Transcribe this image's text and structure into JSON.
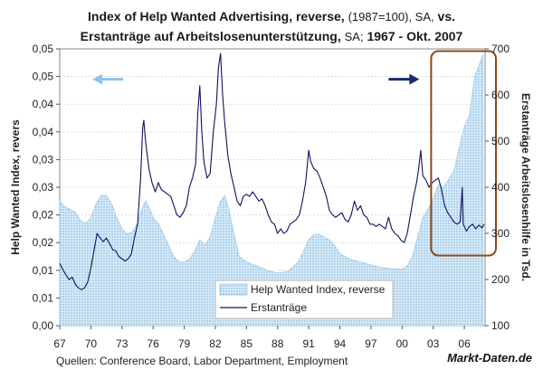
{
  "chart_data": {
    "type": "area+line",
    "title_line1": {
      "bold_a": "Index of Help Wanted Advertising, reverse,",
      "light": "(1987=100), SA,",
      "bold_b": "vs."
    },
    "title_line2": {
      "bold_a": "Erstanträge auf Arbeitslosenunterstützung,",
      "light": "SA;",
      "bold_b": "1967 -  Okt. 2007"
    },
    "ylabel_left": "Help Wanted Index, revers",
    "ylabel_right": "Erstanträge Arbeitslosenhilfe in Tsd.",
    "source": "Quellen: Conference Board, Labor Department, Employment",
    "brand": "Markt-Daten.de",
    "x_tick_labels": [
      "67",
      "70",
      "73",
      "76",
      "79",
      "82",
      "85",
      "88",
      "91",
      "94",
      "97",
      "00",
      "03",
      "06"
    ],
    "x_tick_years": [
      1967,
      1970,
      1973,
      1976,
      1979,
      1982,
      1985,
      1988,
      1991,
      1994,
      1997,
      2000,
      2003,
      2006
    ],
    "xlim": [
      1967.0,
      2008.0
    ],
    "left_ylim": [
      0,
      0.05
    ],
    "left_ticks": [
      "0,00",
      "0,01",
      "0,01",
      "0,02",
      "0,02",
      "0,03",
      "0,03",
      "0,04",
      "0,04",
      "0,05",
      "0,05"
    ],
    "left_tick_values": [
      0,
      0.005,
      0.01,
      0.015,
      0.02,
      0.025,
      0.03,
      0.035,
      0.04,
      0.045,
      0.05
    ],
    "right_ylim": [
      100,
      700
    ],
    "right_ticks": [
      "100",
      "200",
      "300",
      "400",
      "500",
      "600",
      "700"
    ],
    "right_tick_values": [
      100,
      200,
      300,
      400,
      500,
      600,
      700
    ],
    "series": [
      {
        "name": "Help Wanted Index, reverse",
        "axis": "left",
        "style": "area",
        "color": "#9fcbe8",
        "points": [
          [
            1967,
            0.0225
          ],
          [
            1967.5,
            0.0215
          ],
          [
            1968,
            0.021
          ],
          [
            1968.5,
            0.0205
          ],
          [
            1969,
            0.019
          ],
          [
            1969.5,
            0.0185
          ],
          [
            1970,
            0.0195
          ],
          [
            1970.5,
            0.022
          ],
          [
            1971,
            0.0235
          ],
          [
            1971.5,
            0.0235
          ],
          [
            1972,
            0.022
          ],
          [
            1972.5,
            0.0195
          ],
          [
            1973,
            0.0175
          ],
          [
            1973.5,
            0.0165
          ],
          [
            1974,
            0.017
          ],
          [
            1974.5,
            0.0185
          ],
          [
            1975,
            0.0215
          ],
          [
            1975.3,
            0.0225
          ],
          [
            1975.7,
            0.021
          ],
          [
            1976,
            0.0195
          ],
          [
            1976.5,
            0.0185
          ],
          [
            1977,
            0.0165
          ],
          [
            1977.5,
            0.0145
          ],
          [
            1978,
            0.0125
          ],
          [
            1978.5,
            0.0115
          ],
          [
            1979,
            0.0115
          ],
          [
            1979.5,
            0.012
          ],
          [
            1980,
            0.0135
          ],
          [
            1980.5,
            0.0155
          ],
          [
            1981,
            0.0145
          ],
          [
            1981.5,
            0.016
          ],
          [
            1982,
            0.0195
          ],
          [
            1982.5,
            0.0225
          ],
          [
            1982.9,
            0.0235
          ],
          [
            1983.3,
            0.021
          ],
          [
            1983.8,
            0.0165
          ],
          [
            1984.3,
            0.0125
          ],
          [
            1985,
            0.0115
          ],
          [
            1986,
            0.0108
          ],
          [
            1987,
            0.01
          ],
          [
            1988,
            0.0095
          ],
          [
            1989,
            0.0098
          ],
          [
            1990,
            0.0115
          ],
          [
            1990.5,
            0.0135
          ],
          [
            1991,
            0.0155
          ],
          [
            1991.5,
            0.0165
          ],
          [
            1992,
            0.0165
          ],
          [
            1992.5,
            0.016
          ],
          [
            1993,
            0.0155
          ],
          [
            1993.5,
            0.0145
          ],
          [
            1994,
            0.013
          ],
          [
            1995,
            0.012
          ],
          [
            1996,
            0.0115
          ],
          [
            1997,
            0.011
          ],
          [
            1998,
            0.0105
          ],
          [
            1999,
            0.0103
          ],
          [
            2000,
            0.0102
          ],
          [
            2000.5,
            0.0108
          ],
          [
            2001,
            0.0125
          ],
          [
            2001.5,
            0.016
          ],
          [
            2002,
            0.0195
          ],
          [
            2002.5,
            0.021
          ],
          [
            2003,
            0.023
          ],
          [
            2003.5,
            0.0255
          ],
          [
            2004,
            0.025
          ],
          [
            2004.5,
            0.0265
          ],
          [
            2005,
            0.028
          ],
          [
            2005.5,
            0.032
          ],
          [
            2006,
            0.036
          ],
          [
            2006.5,
            0.038
          ],
          [
            2007,
            0.045
          ],
          [
            2007.5,
            0.0475
          ],
          [
            2007.8,
            0.049
          ]
        ]
      },
      {
        "name": "Erstanträge",
        "axis": "right",
        "style": "line",
        "color": "#10105e",
        "points": [
          [
            1967,
            235
          ],
          [
            1967.3,
            222
          ],
          [
            1967.6,
            210
          ],
          [
            1967.9,
            200
          ],
          [
            1968.2,
            205
          ],
          [
            1968.5,
            190
          ],
          [
            1968.8,
            182
          ],
          [
            1969.1,
            178
          ],
          [
            1969.4,
            182
          ],
          [
            1969.7,
            195
          ],
          [
            1970,
            225
          ],
          [
            1970.3,
            262
          ],
          [
            1970.6,
            300
          ],
          [
            1970.9,
            290
          ],
          [
            1971.2,
            282
          ],
          [
            1971.5,
            290
          ],
          [
            1971.8,
            278
          ],
          [
            1972.1,
            265
          ],
          [
            1972.4,
            262
          ],
          [
            1972.7,
            250
          ],
          [
            1973,
            245
          ],
          [
            1973.3,
            240
          ],
          [
            1973.6,
            245
          ],
          [
            1973.9,
            255
          ],
          [
            1974.2,
            290
          ],
          [
            1974.5,
            320
          ],
          [
            1974.8,
            420
          ],
          [
            1975.0,
            530
          ],
          [
            1975.1,
            545
          ],
          [
            1975.3,
            495
          ],
          [
            1975.6,
            440
          ],
          [
            1975.9,
            410
          ],
          [
            1976.2,
            390
          ],
          [
            1976.5,
            410
          ],
          [
            1976.8,
            395
          ],
          [
            1977.1,
            390
          ],
          [
            1977.4,
            385
          ],
          [
            1977.7,
            380
          ],
          [
            1978,
            360
          ],
          [
            1978.3,
            340
          ],
          [
            1978.6,
            335
          ],
          [
            1978.9,
            345
          ],
          [
            1979.2,
            360
          ],
          [
            1979.5,
            400
          ],
          [
            1979.8,
            420
          ],
          [
            1980.1,
            450
          ],
          [
            1980.3,
            560
          ],
          [
            1980.5,
            620
          ],
          [
            1980.7,
            520
          ],
          [
            1980.9,
            455
          ],
          [
            1981.2,
            420
          ],
          [
            1981.5,
            430
          ],
          [
            1981.8,
            520
          ],
          [
            1982.1,
            580
          ],
          [
            1982.3,
            660
          ],
          [
            1982.5,
            690
          ],
          [
            1982.7,
            600
          ],
          [
            1982.9,
            540
          ],
          [
            1983.2,
            470
          ],
          [
            1983.5,
            430
          ],
          [
            1983.8,
            400
          ],
          [
            1984.1,
            370
          ],
          [
            1984.4,
            360
          ],
          [
            1984.7,
            380
          ],
          [
            1985,
            385
          ],
          [
            1985.3,
            380
          ],
          [
            1985.6,
            390
          ],
          [
            1985.9,
            380
          ],
          [
            1986.2,
            370
          ],
          [
            1986.5,
            375
          ],
          [
            1986.8,
            360
          ],
          [
            1987.1,
            340
          ],
          [
            1987.4,
            325
          ],
          [
            1987.7,
            320
          ],
          [
            1988,
            300
          ],
          [
            1988.3,
            310
          ],
          [
            1988.6,
            300
          ],
          [
            1988.9,
            305
          ],
          [
            1989.2,
            320
          ],
          [
            1989.5,
            325
          ],
          [
            1989.8,
            330
          ],
          [
            1990.1,
            340
          ],
          [
            1990.4,
            370
          ],
          [
            1990.7,
            410
          ],
          [
            1991.0,
            480
          ],
          [
            1991.2,
            455
          ],
          [
            1991.5,
            440
          ],
          [
            1991.8,
            435
          ],
          [
            1992.1,
            420
          ],
          [
            1992.4,
            400
          ],
          [
            1992.7,
            380
          ],
          [
            1993,
            350
          ],
          [
            1993.3,
            340
          ],
          [
            1993.6,
            335
          ],
          [
            1993.9,
            340
          ],
          [
            1994.2,
            345
          ],
          [
            1994.5,
            330
          ],
          [
            1994.8,
            325
          ],
          [
            1995.1,
            340
          ],
          [
            1995.4,
            370
          ],
          [
            1995.7,
            350
          ],
          [
            1996,
            360
          ],
          [
            1996.3,
            340
          ],
          [
            1996.6,
            335
          ],
          [
            1996.9,
            320
          ],
          [
            1997.2,
            320
          ],
          [
            1997.5,
            315
          ],
          [
            1997.8,
            320
          ],
          [
            1998.1,
            315
          ],
          [
            1998.4,
            310
          ],
          [
            1998.7,
            335
          ],
          [
            1999,
            310
          ],
          [
            1999.3,
            300
          ],
          [
            1999.6,
            295
          ],
          [
            1999.9,
            285
          ],
          [
            2000.2,
            280
          ],
          [
            2000.5,
            300
          ],
          [
            2000.8,
            340
          ],
          [
            2001.1,
            380
          ],
          [
            2001.4,
            410
          ],
          [
            2001.6,
            440
          ],
          [
            2001.8,
            480
          ],
          [
            2002.0,
            425
          ],
          [
            2002.3,
            415
          ],
          [
            2002.6,
            400
          ],
          [
            2002.9,
            410
          ],
          [
            2003.2,
            415
          ],
          [
            2003.5,
            420
          ],
          [
            2003.8,
            395
          ],
          [
            2004.1,
            360
          ],
          [
            2004.4,
            345
          ],
          [
            2004.7,
            335
          ],
          [
            2005.0,
            325
          ],
          [
            2005.3,
            320
          ],
          [
            2005.6,
            325
          ],
          [
            2005.8,
            400
          ],
          [
            2005.9,
            320
          ],
          [
            2006.2,
            305
          ],
          [
            2006.5,
            315
          ],
          [
            2006.8,
            320
          ],
          [
            2007.1,
            310
          ],
          [
            2007.4,
            318
          ],
          [
            2007.7,
            312
          ],
          [
            2007.9,
            320
          ]
        ]
      }
    ],
    "highlight_box": {
      "year_start": 2002.8,
      "year_end": 2008.0,
      "right_top": 695,
      "right_bottom": 252,
      "color": "#8b4a1a"
    },
    "arrows": [
      {
        "name": "left-axis-arrow",
        "direction": "left",
        "color": "#8fc3ec"
      },
      {
        "name": "right-axis-arrow",
        "direction": "right",
        "color": "#1a2a6a"
      }
    ]
  }
}
